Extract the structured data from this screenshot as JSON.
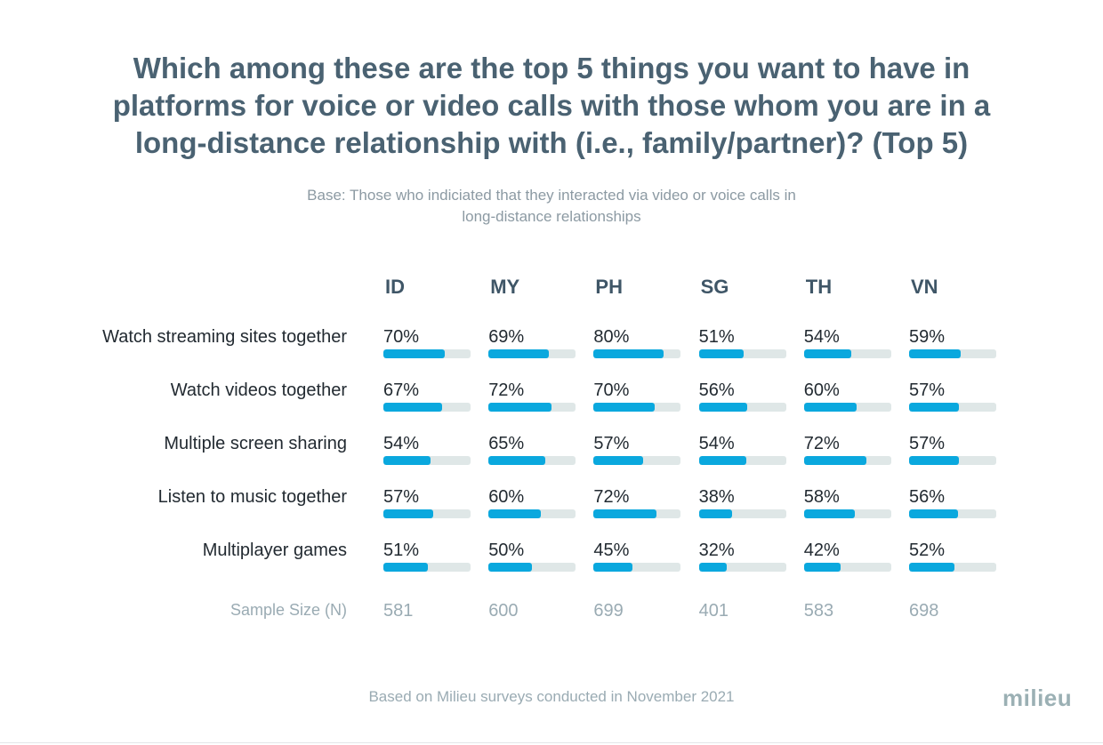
{
  "chart_data": {
    "type": "bar",
    "title": "Which among these are the top 5 things you want to have in\nplatforms for voice or video calls with those whom you are in a\nlong-distance relationship with (i.e., family/partner)? (Top 5)",
    "subtitle": "Base: Those who indiciated that they interacted via video or voice calls in\nlong-distance relationships",
    "columns": [
      "ID",
      "MY",
      "PH",
      "SG",
      "TH",
      "VN"
    ],
    "rows": [
      {
        "label": "Watch streaming sites together",
        "values": [
          70,
          69,
          80,
          51,
          54,
          59
        ]
      },
      {
        "label": "Watch videos together",
        "values": [
          67,
          72,
          70,
          56,
          60,
          57
        ]
      },
      {
        "label": "Multiple screen sharing",
        "values": [
          54,
          65,
          57,
          54,
          72,
          57
        ]
      },
      {
        "label": "Listen to music together",
        "values": [
          57,
          60,
          72,
          38,
          58,
          56
        ]
      },
      {
        "label": "Multiplayer games",
        "values": [
          51,
          50,
          45,
          32,
          42,
          52
        ]
      }
    ],
    "value_suffix": "%",
    "max": 100,
    "sample_size": {
      "label": "Sample Size (N)",
      "values": [
        "581",
        "600",
        "699",
        "401",
        "583",
        "698"
      ]
    }
  },
  "footer": "Based on Milieu surveys conducted in November 2021",
  "logo_text": "milieu",
  "colors": {
    "bar_fill": "#0aa8de",
    "bar_track": "#dfe7e7",
    "title": "#4a6272"
  }
}
